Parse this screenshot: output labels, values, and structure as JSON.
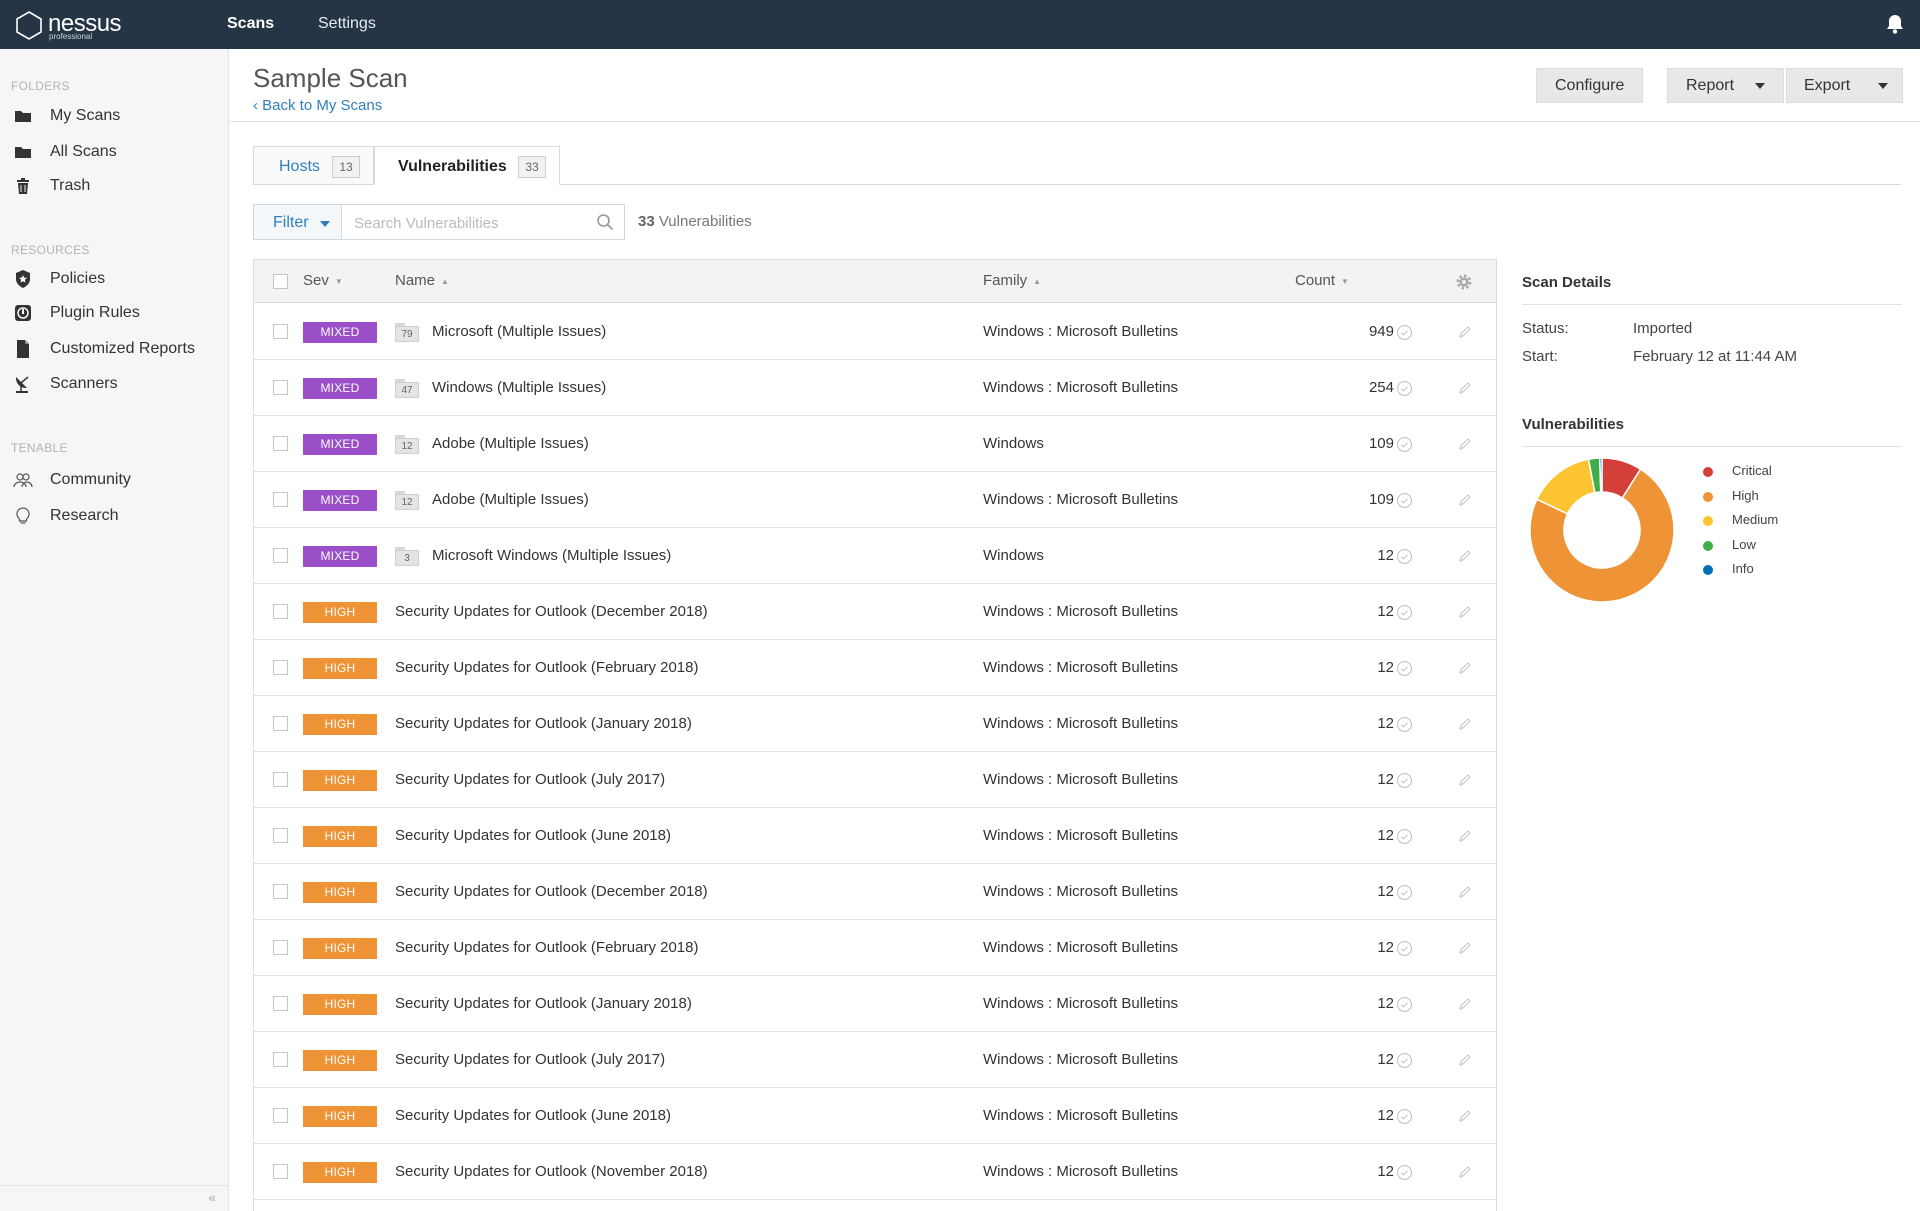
{
  "topbar": {
    "brand": "nessus",
    "brand_sub": "professional",
    "nav": [
      {
        "label": "Scans",
        "active": true
      },
      {
        "label": "Settings",
        "active": false
      }
    ]
  },
  "sidebar": {
    "folders_heading": "FOLDERS",
    "folders": [
      {
        "label": "My Scans",
        "icon": "folder-icon"
      },
      {
        "label": "All Scans",
        "icon": "folder-icon"
      },
      {
        "label": "Trash",
        "icon": "trash-icon"
      }
    ],
    "resources_heading": "RESOURCES",
    "resources": [
      {
        "label": "Policies",
        "icon": "shield-icon"
      },
      {
        "label": "Plugin Rules",
        "icon": "plugin-rules-icon"
      },
      {
        "label": "Customized Reports",
        "icon": "document-icon"
      },
      {
        "label": "Scanners",
        "icon": "satellite-dish-icon"
      }
    ],
    "tenable_heading": "TENABLE",
    "tenable": [
      {
        "label": "Community",
        "icon": "community-icon"
      },
      {
        "label": "Research",
        "icon": "lightbulb-icon"
      }
    ],
    "collapse_label": "«"
  },
  "header": {
    "title": "Sample Scan",
    "back_link": "‹ Back to My Scans",
    "configure_label": "Configure",
    "report_label": "Report",
    "export_label": "Export"
  },
  "tabs": [
    {
      "label": "Hosts",
      "count": "13",
      "active": false
    },
    {
      "label": "Vulnerabilities",
      "count": "33",
      "active": true
    }
  ],
  "filter": {
    "label": "Filter",
    "search_placeholder": "Search Vulnerabilities",
    "count_number": "33",
    "count_suffix": " Vulnerabilities"
  },
  "table": {
    "columns": {
      "sev": "Sev",
      "name": "Name",
      "family": "Family",
      "count": "Count"
    },
    "rows": [
      {
        "sev": "MIXED",
        "group": "79",
        "name": "Microsoft (Multiple Issues)",
        "family": "Windows : Microsoft Bulletins",
        "count": "949"
      },
      {
        "sev": "MIXED",
        "group": "47",
        "name": "Windows (Multiple Issues)",
        "family": "Windows : Microsoft Bulletins",
        "count": "254"
      },
      {
        "sev": "MIXED",
        "group": "12",
        "name": "Adobe (Multiple Issues)",
        "family": "Windows",
        "count": "109"
      },
      {
        "sev": "MIXED",
        "group": "12",
        "name": "Adobe (Multiple Issues)",
        "family": "Windows : Microsoft Bulletins",
        "count": "109"
      },
      {
        "sev": "MIXED",
        "group": "3",
        "name": "Microsoft Windows (Multiple Issues)",
        "family": "Windows",
        "count": "12"
      },
      {
        "sev": "HIGH",
        "group": "",
        "name": "Security Updates for Outlook (December 2018)",
        "family": "Windows : Microsoft Bulletins",
        "count": "12"
      },
      {
        "sev": "HIGH",
        "group": "",
        "name": "Security Updates for Outlook (February 2018)",
        "family": "Windows : Microsoft Bulletins",
        "count": "12"
      },
      {
        "sev": "HIGH",
        "group": "",
        "name": "Security Updates for Outlook (January 2018)",
        "family": "Windows : Microsoft Bulletins",
        "count": "12"
      },
      {
        "sev": "HIGH",
        "group": "",
        "name": "Security Updates for Outlook (July 2017)",
        "family": "Windows : Microsoft Bulletins",
        "count": "12"
      },
      {
        "sev": "HIGH",
        "group": "",
        "name": "Security Updates for Outlook (June 2018)",
        "family": "Windows : Microsoft Bulletins",
        "count": "12"
      },
      {
        "sev": "HIGH",
        "group": "",
        "name": "Security Updates for Outlook (December 2018)",
        "family": "Windows : Microsoft Bulletins",
        "count": "12"
      },
      {
        "sev": "HIGH",
        "group": "",
        "name": "Security Updates for Outlook (February 2018)",
        "family": "Windows : Microsoft Bulletins",
        "count": "12"
      },
      {
        "sev": "HIGH",
        "group": "",
        "name": "Security Updates for Outlook (January 2018)",
        "family": "Windows : Microsoft Bulletins",
        "count": "12"
      },
      {
        "sev": "HIGH",
        "group": "",
        "name": "Security Updates for Outlook (July 2017)",
        "family": "Windows : Microsoft Bulletins",
        "count": "12"
      },
      {
        "sev": "HIGH",
        "group": "",
        "name": "Security Updates for Outlook (June 2018)",
        "family": "Windows : Microsoft Bulletins",
        "count": "12"
      },
      {
        "sev": "HIGH",
        "group": "",
        "name": "Security Updates for Outlook (November 2018)",
        "family": "Windows : Microsoft Bulletins",
        "count": "12"
      }
    ]
  },
  "scan_details": {
    "heading": "Scan Details",
    "status_label": "Status:",
    "status_value": "Imported",
    "start_label": "Start:",
    "start_value": "February 12 at 11:44 AM"
  },
  "vulnerabilities_panel": {
    "heading": "Vulnerabilities",
    "legend": [
      {
        "label": "Critical",
        "color": "#d43f3a",
        "share": 0.09
      },
      {
        "label": "High",
        "color": "#ee9336",
        "share": 0.73
      },
      {
        "label": "Medium",
        "color": "#fdc431",
        "share": 0.15
      },
      {
        "label": "Low",
        "color": "#3fae49",
        "share": 0.025
      },
      {
        "label": "Info",
        "color": "#0071b9",
        "share": 0.005
      }
    ]
  },
  "colors": {
    "topbar": "#263545",
    "link": "#2e7fc0",
    "mixed": "#9b4fc8",
    "high": "#ee9336"
  }
}
